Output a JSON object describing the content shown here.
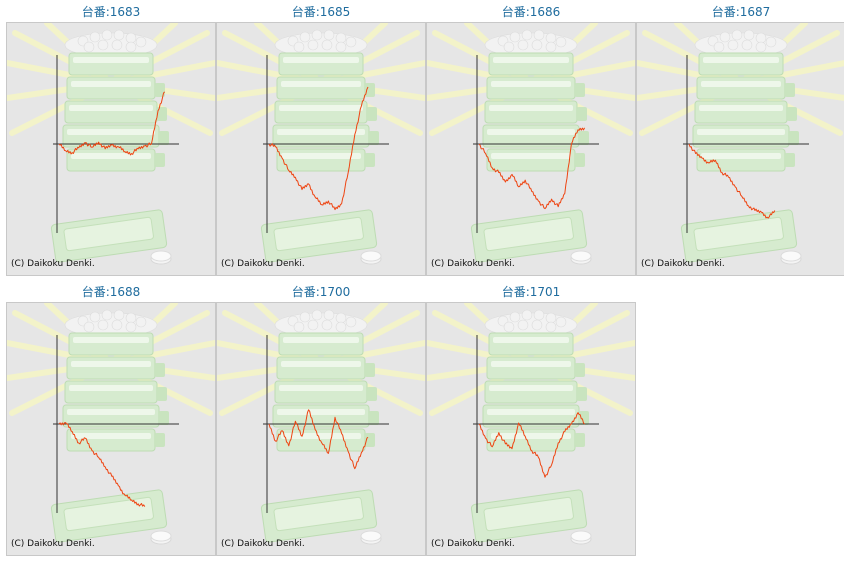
{
  "chart_data": [
    {
      "type": "line",
      "title": "台番:1683",
      "copyright": "(C) Daikoku Denki.",
      "series": [
        {
          "values": [
            0,
            -700,
            -900,
            -400,
            150,
            -350,
            200,
            -500,
            -100,
            -300,
            -800,
            -1000,
            -500,
            -200,
            0,
            3500,
            5500
          ]
        }
      ]
    },
    {
      "type": "line",
      "title": "台番:1685",
      "copyright": "(C) Daikoku Denki.",
      "series": [
        {
          "values": [
            0,
            -300,
            -1500,
            -2800,
            -3500,
            -4800,
            -4200,
            -5600,
            -6400,
            -6000,
            -6900,
            -6300,
            -3000,
            1000,
            4000,
            6000
          ]
        }
      ]
    },
    {
      "type": "line",
      "title": "台番:1686",
      "copyright": "(C) Daikoku Denki.",
      "series": [
        {
          "values": [
            0,
            -1000,
            -2500,
            -3000,
            -4000,
            -3200,
            -4500,
            -3800,
            -5000,
            -6000,
            -6800,
            -5800,
            -6600,
            -5200,
            0,
            1500,
            1700
          ]
        }
      ]
    },
    {
      "type": "line",
      "title": "台番:1687",
      "copyright": "(C) Daikoku Denki.",
      "series": [
        {
          "values": [
            0,
            -1000,
            -1500,
            -2000,
            -1700,
            -3000,
            -3500,
            -4500,
            -5500,
            -6500,
            -7000,
            -7200,
            -7800,
            -7000
          ]
        }
      ]
    },
    {
      "type": "line",
      "title": "台番:1688",
      "copyright": "(C) Daikoku Denki.",
      "series": [
        {
          "values": [
            0,
            150,
            -800,
            -2000,
            -1500,
            -2800,
            -3500,
            -4500,
            -5500,
            -6500,
            -7500,
            -8000,
            -8400,
            -8700
          ]
        }
      ]
    },
    {
      "type": "line",
      "title": "台番:1700",
      "copyright": "(C) Daikoku Denki.",
      "series": [
        {
          "values": [
            0,
            -1800,
            -700,
            -2300,
            300,
            -1300,
            1500,
            -600,
            -2000,
            -3100,
            700,
            -1000,
            -2900,
            -4700,
            -3000,
            -1400
          ]
        }
      ]
    },
    {
      "type": "line",
      "title": "台番:1701",
      "copyright": "(C) Daikoku Denki.",
      "series": [
        {
          "values": [
            0,
            -1500,
            -2400,
            -900,
            -2100,
            -2600,
            100,
            -1300,
            -2800,
            -3500,
            -5600,
            -4300,
            -2000,
            -800,
            0,
            1200,
            0
          ]
        }
      ]
    }
  ]
}
